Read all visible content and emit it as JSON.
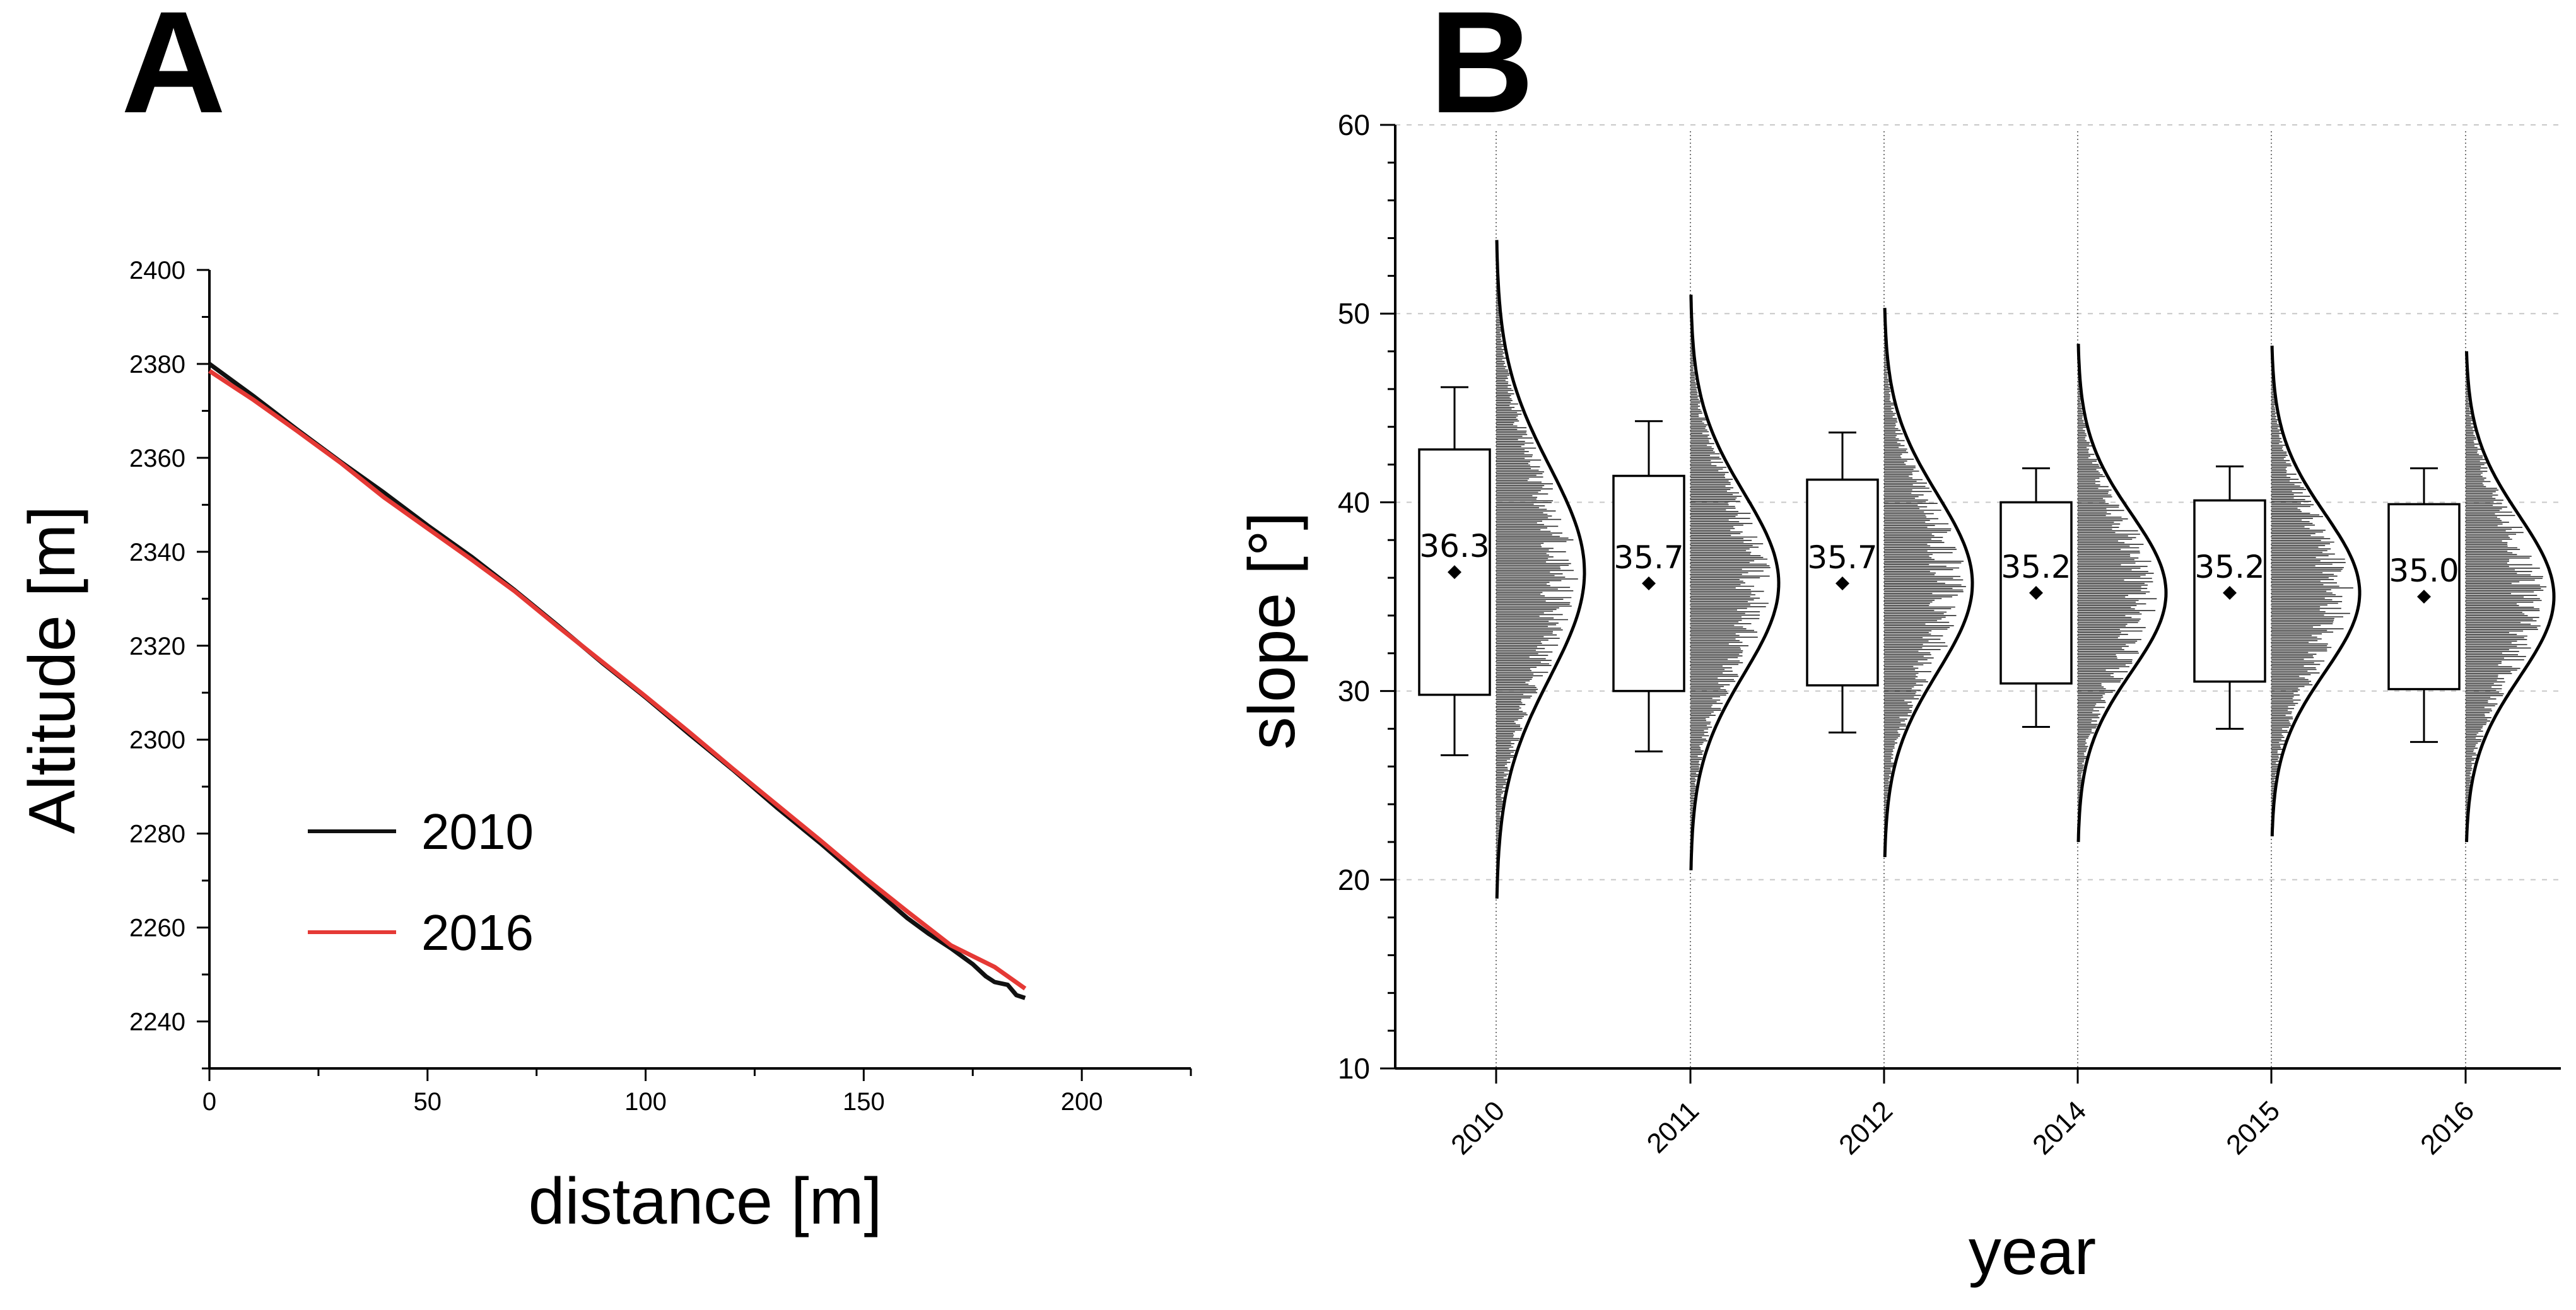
{
  "figure": {
    "panel_a_letter": "A",
    "panel_b_letter": "B"
  },
  "colors": {
    "line_2010": "#111111",
    "line_2016": "#e53935",
    "axis": "#000000",
    "grid": "#c8c8c8"
  },
  "chart_data": [
    {
      "id": "A",
      "type": "line",
      "title": "",
      "xlabel": "distance [m]",
      "ylabel": "Altitude [m]",
      "xlim": [
        0,
        225
      ],
      "ylim": [
        2230,
        2400
      ],
      "xticks": [
        0,
        50,
        100,
        150,
        200
      ],
      "yticks": [
        2240,
        2260,
        2280,
        2300,
        2320,
        2340,
        2360,
        2380,
        2400
      ],
      "grid": false,
      "legend_position": "lower-left",
      "series": [
        {
          "name": "2010",
          "color": "#111111",
          "x": [
            0,
            10,
            20,
            30,
            40,
            50,
            60,
            70,
            80,
            90,
            100,
            110,
            120,
            130,
            140,
            150,
            160,
            165,
            170,
            175,
            178,
            180,
            183,
            185,
            187
          ],
          "y": [
            2380,
            2373.2,
            2366.1,
            2359.2,
            2352.6,
            2345.6,
            2339.0,
            2331.8,
            2324.2,
            2316.4,
            2309.0,
            2301.2,
            2293.6,
            2285.6,
            2278.0,
            2270.0,
            2262.0,
            2258.6,
            2255.6,
            2252.2,
            2249.6,
            2248.4,
            2247.8,
            2245.6,
            2245.0
          ]
        },
        {
          "name": "2016",
          "color": "#e53935",
          "x": [
            0,
            10,
            20,
            30,
            40,
            50,
            60,
            70,
            80,
            90,
            100,
            110,
            120,
            130,
            140,
            150,
            160,
            170,
            180,
            187
          ],
          "y": [
            2378.5,
            2372.4,
            2365.8,
            2359.0,
            2351.6,
            2345.0,
            2338.4,
            2331.6,
            2324.0,
            2316.6,
            2309.2,
            2301.6,
            2293.8,
            2286.2,
            2278.6,
            2270.8,
            2263.4,
            2256.2,
            2251.6,
            2247.0
          ]
        }
      ]
    },
    {
      "id": "B",
      "type": "box",
      "title": "",
      "xlabel": "year",
      "ylabel": "slope [°]",
      "ylim": [
        10,
        60
      ],
      "yticks": [
        10,
        20,
        30,
        40,
        50,
        60
      ],
      "grid": true,
      "categories": [
        "2010",
        "2011",
        "2012",
        "2014",
        "2015",
        "2016"
      ],
      "boxes": [
        {
          "year": "2010",
          "mean": 36.3,
          "mean_label": "36.3",
          "whisker_low": 26.6,
          "q1": 29.8,
          "q3": 42.8,
          "whisker_high": 46.1,
          "dist_min": 19.0,
          "dist_max": 53.9,
          "dist_sd": 5.6
        },
        {
          "year": "2011",
          "mean": 35.7,
          "mean_label": "35.7",
          "whisker_low": 26.8,
          "q1": 30.0,
          "q3": 41.4,
          "whisker_high": 44.3,
          "dist_min": 20.5,
          "dist_max": 51.0,
          "dist_sd": 4.8
        },
        {
          "year": "2012",
          "mean": 35.7,
          "mean_label": "35.7",
          "whisker_low": 27.8,
          "q1": 30.3,
          "q3": 41.2,
          "whisker_high": 43.7,
          "dist_min": 21.2,
          "dist_max": 50.3,
          "dist_sd": 4.7
        },
        {
          "year": "2014",
          "mean": 35.2,
          "mean_label": "35.2",
          "whisker_low": 28.1,
          "q1": 30.4,
          "q3": 40.0,
          "whisker_high": 41.8,
          "dist_min": 22.0,
          "dist_max": 48.4,
          "dist_sd": 4.2
        },
        {
          "year": "2015",
          "mean": 35.2,
          "mean_label": "35.2",
          "whisker_low": 28.0,
          "q1": 30.5,
          "q3": 40.1,
          "whisker_high": 41.9,
          "dist_min": 22.3,
          "dist_max": 48.3,
          "dist_sd": 4.2
        },
        {
          "year": "2016",
          "mean": 35.0,
          "mean_label": "35.0",
          "whisker_low": 27.3,
          "q1": 30.1,
          "q3": 39.9,
          "whisker_high": 41.8,
          "dist_min": 22.0,
          "dist_max": 48.0,
          "dist_sd": 4.3
        }
      ]
    }
  ]
}
